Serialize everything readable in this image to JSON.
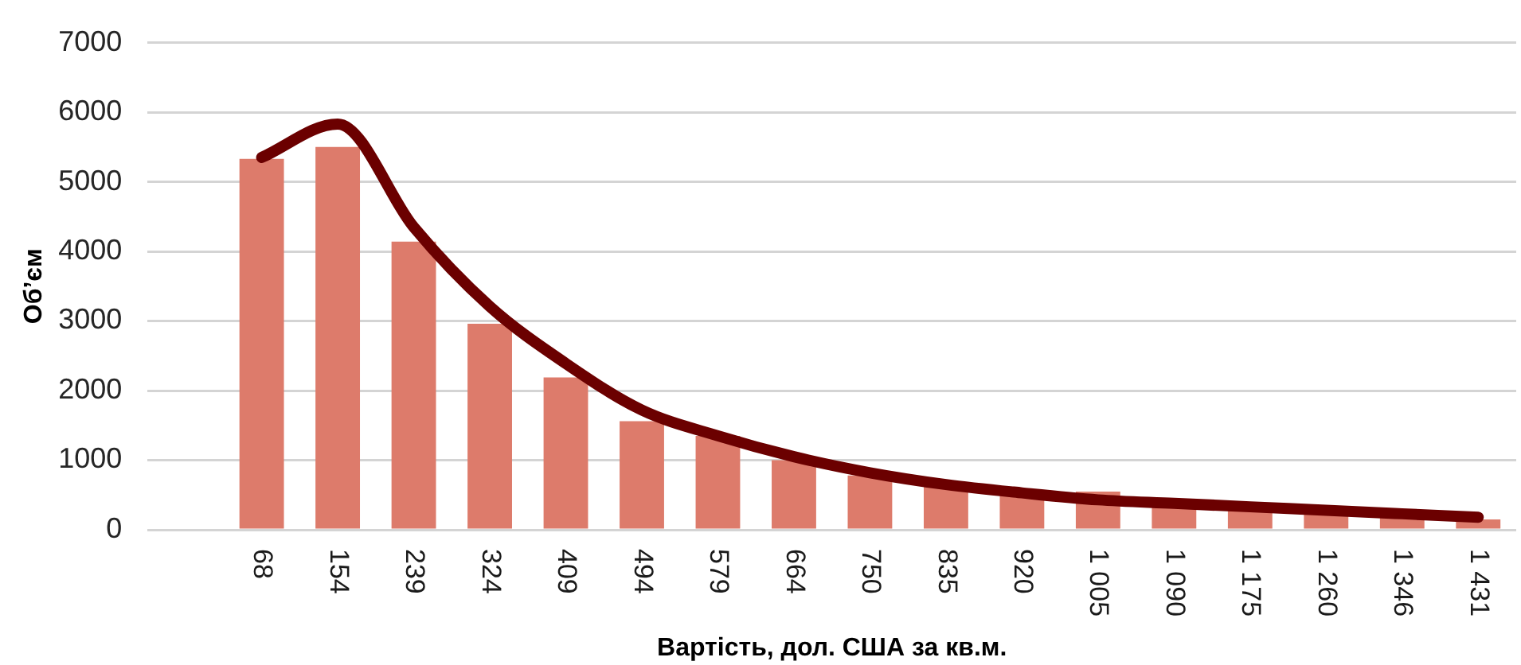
{
  "chart_data": {
    "type": "bar",
    "xlabel": "Вартість, дол. США за кв.м.",
    "ylabel": "Об’єм",
    "categories": [
      null,
      "68",
      "154",
      "239",
      "324",
      "409",
      "494",
      "579",
      "664",
      "750",
      "835",
      "920",
      "1 005",
      "1 090",
      "1 175",
      "1 260",
      "1 346",
      "1 431"
    ],
    "series": [
      {
        "color": "#dd7b6b",
        "values": [
          null,
          5330,
          5500,
          4140,
          2960,
          2190,
          1560,
          1350,
          1000,
          780,
          620,
          500,
          550,
          350,
          300,
          250,
          200,
          150
        ]
      },
      {
        "type": "line",
        "color": "#6b0000",
        "values": [
          null,
          5350,
          5830,
          4350,
          3210,
          2390,
          1720,
          1350,
          1050,
          820,
          650,
          530,
          430,
          380,
          330,
          280,
          230,
          180
        ]
      }
    ],
    "ylim": [
      0,
      7000
    ],
    "yticks": [
      0,
      1000,
      2000,
      3000,
      4000,
      5000,
      6000,
      7000
    ],
    "grid": "y",
    "marker": "none",
    "line_style": "solid"
  }
}
